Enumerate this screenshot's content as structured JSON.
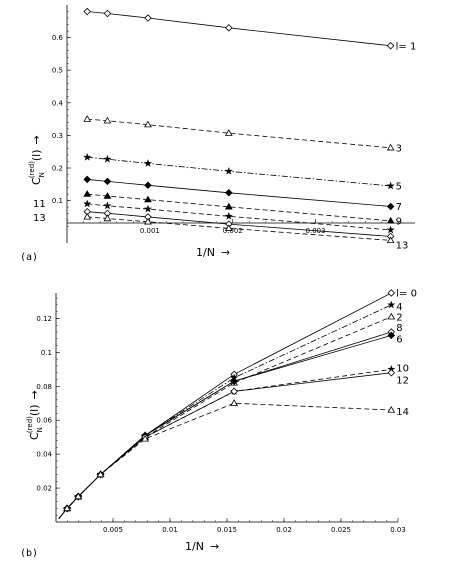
{
  "chart_data": [
    {
      "type": "line",
      "panel_label": "(a)",
      "xlabel": "1/N",
      "xarrow": "→",
      "ylabel_main": "C",
      "ylabel_sub": "N",
      "ylabel_sup": "(red)",
      "ylabel_arg": "(l)",
      "yarrow": "→",
      "xlim": [
        0,
        0.0042
      ],
      "ylim": [
        -0.03,
        0.7
      ],
      "xticks": [
        0.001,
        0.002,
        0.003
      ],
      "xtick_labels": [
        "0.001",
        "0.002",
        "0.003"
      ],
      "yticks": [
        0.1,
        0.2,
        0.3,
        0.4,
        0.5,
        0.6
      ],
      "ytick_labels": [
        "0.1",
        "0.2",
        "0.3",
        "0.4",
        "0.5",
        "0.6"
      ],
      "x": [
        0.000244,
        0.000488,
        0.000977,
        0.001953,
        0.003906
      ],
      "series": [
        {
          "name": "l= 1",
          "marker": "diamond",
          "dash": "solid",
          "values": [
            0.68,
            0.674,
            0.66,
            0.63,
            0.575
          ]
        },
        {
          "name": "3",
          "marker": "triangle",
          "dash": "dashed",
          "values": [
            0.35,
            0.345,
            0.333,
            0.307,
            0.262
          ]
        },
        {
          "name": "5",
          "marker": "star",
          "dash": "dashdot",
          "values": [
            0.233,
            0.227,
            0.214,
            0.19,
            0.145
          ]
        },
        {
          "name": "7",
          "marker": "filled-diamond",
          "dash": "solid",
          "values": [
            0.165,
            0.159,
            0.147,
            0.124,
            0.082
          ]
        },
        {
          "name": "9",
          "marker": "filled-triangle",
          "dash": "dashed",
          "values": [
            0.12,
            0.114,
            0.103,
            0.081,
            0.038
          ]
        },
        {
          "name": "",
          "marker": "star",
          "dash": "dashed",
          "values": [
            0.09,
            0.084,
            0.074,
            0.052,
            0.01
          ]
        },
        {
          "name": "",
          "marker": "diamond",
          "dash": "solid",
          "values": [
            0.066,
            0.061,
            0.05,
            0.028,
            -0.01
          ]
        },
        {
          "name": "13",
          "marker": "triangle",
          "dash": "dashed",
          "values": [
            0.05,
            0.045,
            0.035,
            0.015,
            -0.022
          ]
        }
      ],
      "left_labels": [
        "11",
        "13"
      ]
    },
    {
      "type": "line",
      "panel_label": "(b)",
      "xlabel": "1/N",
      "xarrow": "→",
      "ylabel_main": "C",
      "ylabel_sub": "N",
      "ylabel_sup": "(red)",
      "ylabel_arg": "(l)",
      "yarrow": "→",
      "xlim": [
        0,
        0.03
      ],
      "ylim": [
        0,
        0.135
      ],
      "xticks": [
        0.005,
        0.01,
        0.015,
        0.02,
        0.025,
        0.03
      ],
      "xtick_labels": [
        "0.005",
        "0.01",
        "0.015",
        "0.02",
        "0.025",
        "0.03"
      ],
      "yticks": [
        0.02,
        0.04,
        0.06,
        0.08,
        0.1,
        0.12
      ],
      "ytick_labels": [
        "0.02",
        "0.04",
        "0.06",
        "0.08",
        "0.1",
        "0.12"
      ],
      "x": [
        0.000244,
        0.000488,
        0.000977,
        0.001953,
        0.003906,
        0.007813,
        0.015625,
        0.029412
      ],
      "series": [
        {
          "name": "l= 0",
          "marker": "diamond",
          "dash": "solid",
          "values": [
            0.002,
            0.004,
            0.008,
            0.015,
            0.028,
            0.051,
            0.087,
            0.135
          ]
        },
        {
          "name": "4",
          "marker": "star",
          "dash": "dashdot",
          "values": [
            0.002,
            0.004,
            0.008,
            0.015,
            0.028,
            0.051,
            0.085,
            0.128
          ]
        },
        {
          "name": "2",
          "marker": "triangle",
          "dash": "dashed",
          "values": [
            0.002,
            0.004,
            0.008,
            0.015,
            0.028,
            0.05,
            0.082,
            0.121
          ]
        },
        {
          "name": "8",
          "marker": "diamond",
          "dash": "solid",
          "values": [
            0.002,
            0.004,
            0.008,
            0.015,
            0.028,
            0.051,
            0.083,
            0.112
          ]
        },
        {
          "name": "6",
          "marker": "filled-diamond",
          "dash": "solid",
          "values": [
            0.002,
            0.004,
            0.008,
            0.015,
            0.028,
            0.051,
            0.083,
            0.11
          ]
        },
        {
          "name": "10",
          "marker": "star",
          "dash": "dashed",
          "values": [
            0.002,
            0.004,
            0.008,
            0.015,
            0.028,
            0.05,
            0.077,
            0.09
          ]
        },
        {
          "name": "12",
          "marker": "diamond",
          "dash": "solid",
          "values": [
            0.002,
            0.004,
            0.008,
            0.015,
            0.028,
            0.05,
            0.077,
            0.088
          ]
        },
        {
          "name": "14",
          "marker": "triangle",
          "dash": "dashed",
          "values": [
            0.002,
            0.004,
            0.008,
            0.015,
            0.028,
            0.049,
            0.07,
            0.066
          ]
        }
      ]
    }
  ]
}
